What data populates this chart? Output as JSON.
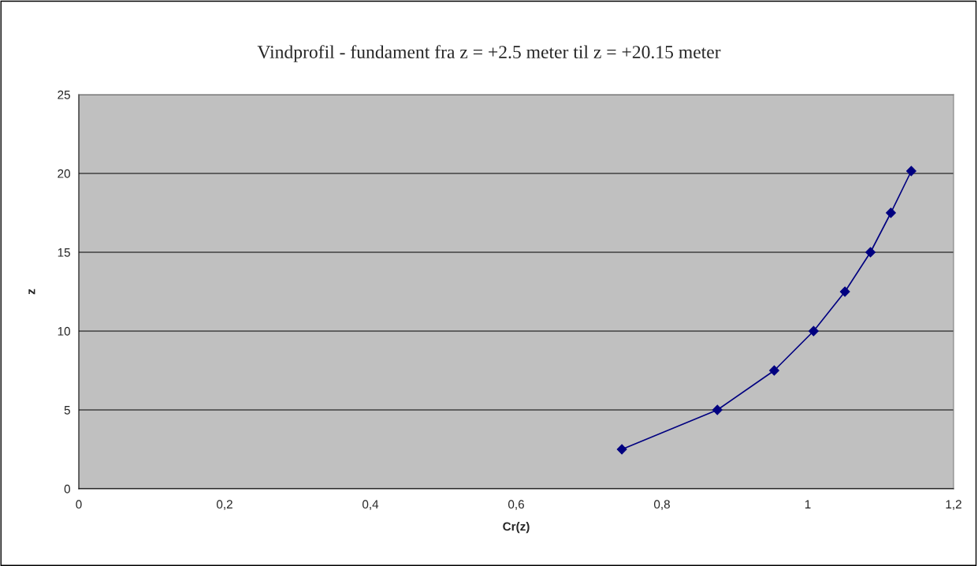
{
  "chart_data": {
    "type": "line",
    "title": "Vindprofil - fundament fra z = +2.5 meter til z = +20.15 meter",
    "xlabel": "Cr(z)",
    "ylabel": "z",
    "series": [
      {
        "color": "#000080",
        "x": [
          0.745,
          0.876,
          0.954,
          1.008,
          1.051,
          1.086,
          1.114,
          1.142
        ],
        "values": [
          2.5,
          5,
          7.5,
          10,
          12.5,
          15,
          17.5,
          20.15
        ]
      }
    ],
    "xlim": [
      0,
      1.2
    ],
    "xticks": [
      0,
      {
        "value": 0.2,
        "label": "0,2"
      },
      {
        "value": 0.4,
        "label": "0,4"
      },
      {
        "value": 0.6,
        "label": "0,6"
      },
      {
        "value": 0.8,
        "label": "0,8"
      },
      1,
      {
        "value": 1.2,
        "label": "1,2"
      }
    ],
    "ylim": [
      0,
      25
    ],
    "yticks": [
      0,
      5,
      10,
      15,
      20,
      25
    ],
    "grid": "y",
    "marker": "diamond",
    "line_style": "solid",
    "legend": false
  }
}
